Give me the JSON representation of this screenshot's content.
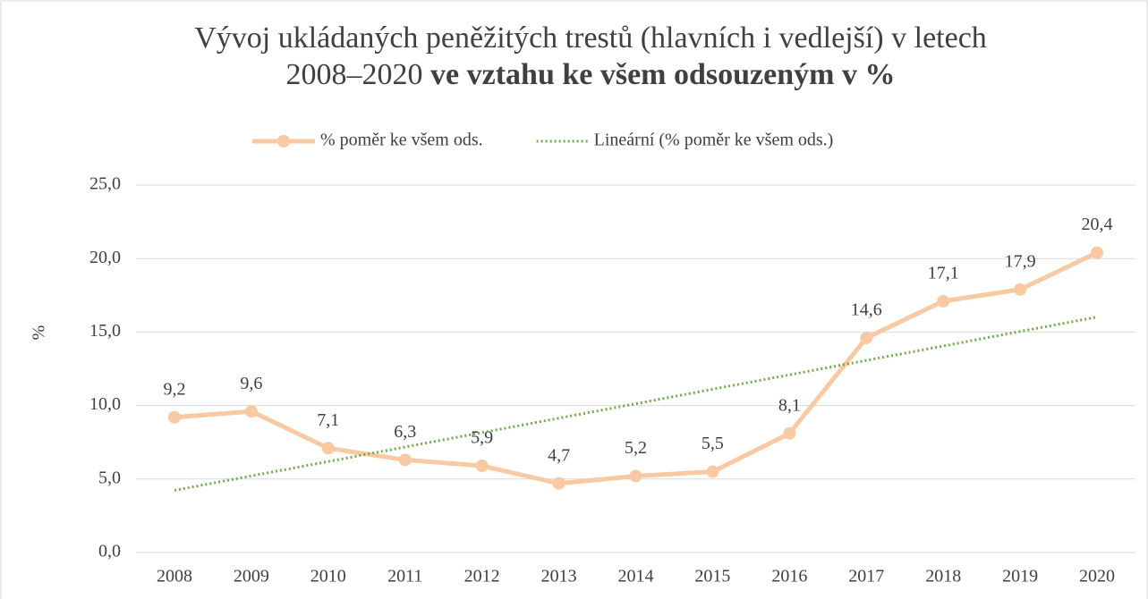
{
  "chart_data": {
    "type": "line",
    "title": [
      "Vývoj ukládaných peněžitých trestů (hlavních i vedlejší) v letech",
      "2008–2020",
      "ve vztahu ke všem odsouzeným v %"
    ],
    "y_label": "%",
    "categories": [
      "2008",
      "2009",
      "2010",
      "2011",
      "2012",
      "2013",
      "2014",
      "2015",
      "2016",
      "2017",
      "2018",
      "2019",
      "2020"
    ],
    "series": [
      {
        "name": "% poměr ke všem ods.",
        "color": "#f8c9a2",
        "values": [
          9.2,
          9.6,
          7.1,
          6.3,
          5.9,
          4.7,
          5.2,
          5.5,
          8.1,
          14.6,
          17.1,
          17.9,
          20.4
        ],
        "value_labels": [
          "9,2",
          "9,6",
          "7,1",
          "6,3",
          "5,9",
          "4,7",
          "5,2",
          "5,5",
          "8,1",
          "14,6",
          "17,1",
          "17,9",
          "20,4"
        ]
      },
      {
        "name": "Lineární (% poměr ke všem ods.)",
        "color": "#70ad47",
        "dashed": true,
        "values": [
          4.23,
          5.21,
          6.19,
          7.18,
          8.16,
          9.14,
          10.12,
          11.11,
          12.09,
          13.07,
          14.05,
          15.04,
          16.02
        ]
      }
    ],
    "ylim": [
      0,
      25
    ],
    "yticks": [
      {
        "value": 0,
        "label": "0,0"
      },
      {
        "value": 5,
        "label": "5,0"
      },
      {
        "value": 10,
        "label": "10,0"
      },
      {
        "value": 15,
        "label": "15,0"
      },
      {
        "value": 20,
        "label": "20,0"
      },
      {
        "value": 25,
        "label": "25,0"
      }
    ],
    "grid": true,
    "legend": "top"
  }
}
